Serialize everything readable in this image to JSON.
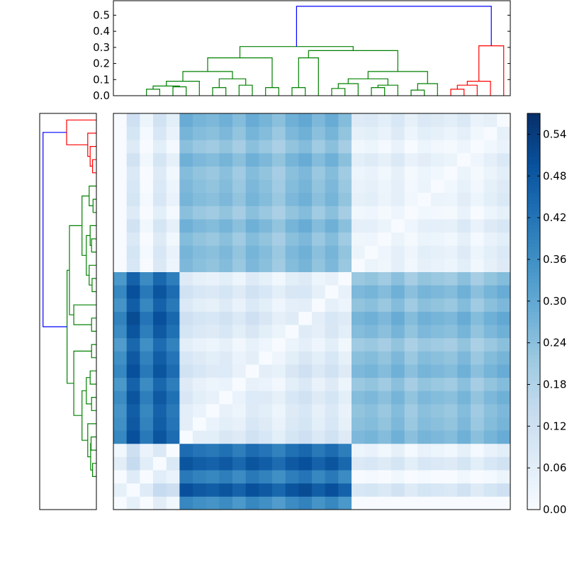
{
  "colors": {
    "link_above": "#0000ff",
    "cluster_a": "#008000",
    "cluster_b": "#ff0000",
    "frame": "#000000"
  },
  "chart_data": [
    {
      "type": "dendrogram",
      "orientation": "top",
      "ylim": [
        0,
        0.59
      ],
      "yticks": [
        "0.0",
        "0.1",
        "0.2",
        "0.3",
        "0.4",
        "0.5"
      ],
      "leaf_count": 30,
      "root_height": 0.555,
      "cluster_heights": [
        0.31,
        0.305,
        0.28,
        0.235,
        0.15,
        0.105,
        0.09,
        0.075,
        0.065,
        0.06,
        0.055,
        0.05,
        0.045,
        0.04,
        0.035
      ]
    },
    {
      "type": "dendrogram",
      "orientation": "left",
      "leaf_count": 30,
      "root_height": 0.555
    },
    {
      "type": "heatmap",
      "rows": 30,
      "cols": 30,
      "colormap": "Blues",
      "vmin": 0,
      "vmax": 0.57,
      "colorbar_ticks": [
        "0.00",
        "0.06",
        "0.12",
        "0.18",
        "0.24",
        "0.30",
        "0.36",
        "0.42",
        "0.48",
        "0.54"
      ],
      "cluster_sizes": [
        5,
        13,
        12
      ],
      "block_means": [
        [
          0.12,
          0.44,
          0.05
        ],
        [
          0.44,
          0.07,
          0.24
        ],
        [
          0.05,
          0.24,
          0.04
        ]
      ],
      "row_offsets": [
        -0.08,
        0.04,
        -0.05,
        0.03,
        -0.02,
        0.02,
        0.0,
        -0.01,
        0.01,
        -0.02,
        0.02,
        0.0,
        -0.03,
        0.01,
        0.03,
        -0.01,
        0.02,
        -0.02,
        0.0,
        0.01,
        -0.01,
        0.02,
        -0.02,
        0.01,
        0.0,
        -0.01,
        0.02,
        -0.02,
        0.01,
        0.03
      ]
    }
  ]
}
